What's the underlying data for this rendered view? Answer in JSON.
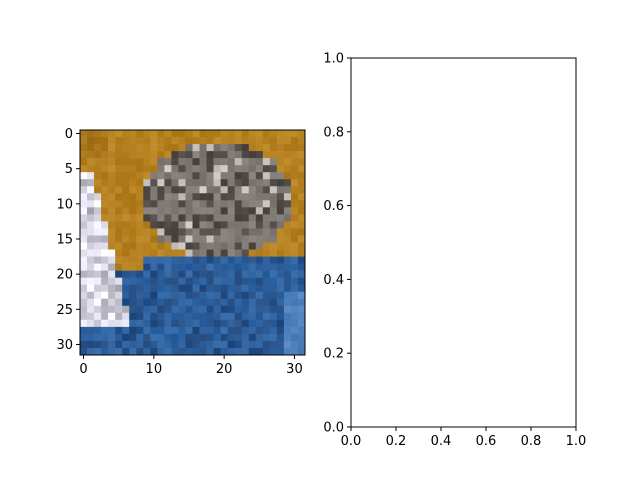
{
  "figure": {
    "background": "#ffffff",
    "axes_color": "#000000"
  },
  "chart_data": [
    {
      "type": "heatmap",
      "description": "pixelated 32x32 color image",
      "title": "",
      "xlabel": "",
      "ylabel": "",
      "xlim": [
        -0.5,
        31.5
      ],
      "ylim": [
        31.5,
        -0.5
      ],
      "x_ticks": [
        0,
        10,
        20,
        30
      ],
      "y_ticks": [
        0,
        5,
        10,
        15,
        20,
        25,
        30
      ],
      "x_tick_labels": [
        "0",
        "10",
        "20",
        "30"
      ],
      "y_tick_labels": [
        "0",
        "5",
        "10",
        "15",
        "20",
        "25",
        "30"
      ],
      "grid": false,
      "image_regions": {
        "background_color": "#b5801f",
        "bed_color": "#2f62a0",
        "bed_dark_color": "#264f86",
        "cat_color": "#7f7a76",
        "cat_dark_color": "#4f4a45",
        "highlight_color": "#e8e6ea"
      }
    },
    {
      "type": "line",
      "title": "",
      "xlabel": "",
      "ylabel": "",
      "series": [],
      "xlim": [
        0,
        1
      ],
      "ylim": [
        0,
        1
      ],
      "x_ticks": [
        0.0,
        0.2,
        0.4,
        0.6,
        0.8,
        1.0
      ],
      "y_ticks": [
        0.0,
        0.2,
        0.4,
        0.6,
        0.8,
        1.0
      ],
      "x_tick_labels": [
        "0.0",
        "0.2",
        "0.4",
        "0.6",
        "0.8",
        "1.0"
      ],
      "y_tick_labels": [
        "0.0",
        "0.2",
        "0.4",
        "0.6",
        "0.8",
        "1.0"
      ],
      "grid": false
    }
  ]
}
